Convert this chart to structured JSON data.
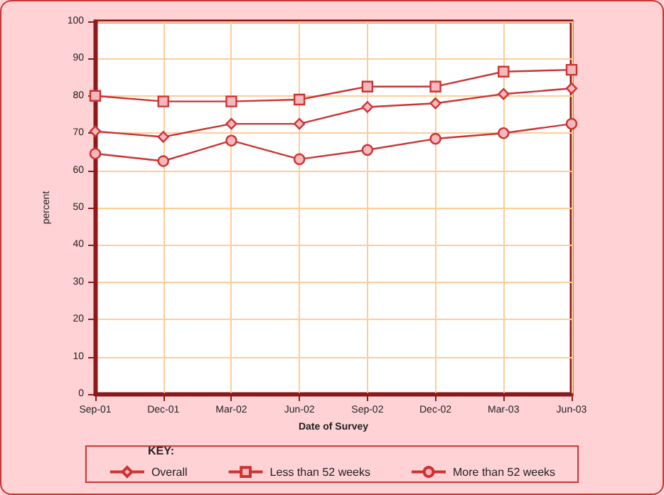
{
  "chart_data": {
    "type": "line",
    "xlabel": "Date of Survey",
    "ylabel": "percent",
    "legend_title": "KEY:",
    "categories": [
      "Sep-01",
      "Dec-01",
      "Mar-02",
      "Jun-02",
      "Sep-02",
      "Dec-02",
      "Mar-03",
      "Jun-03"
    ],
    "series": [
      {
        "name": "Overall",
        "color": "#cc3333",
        "marker": "diamond",
        "values": [
          70.5,
          69,
          72.5,
          72.5,
          77,
          78,
          80.5,
          82
        ]
      },
      {
        "name": "Less than 52 weeks",
        "color": "#cc3333",
        "marker": "square",
        "values": [
          80,
          78.5,
          78.5,
          79,
          82.5,
          82.5,
          86.5,
          87
        ]
      },
      {
        "name": "More than 52 weeks",
        "color": "#cc3333",
        "marker": "circle",
        "values": [
          64.5,
          62.5,
          68,
          63,
          65.5,
          68.5,
          70,
          72.5
        ]
      }
    ],
    "ylim": [
      0,
      100
    ],
    "yticks": [
      0,
      10,
      20,
      30,
      40,
      50,
      60,
      70,
      80,
      90,
      100
    ],
    "grid": true,
    "legend": "bottom",
    "line_style": "solid"
  }
}
